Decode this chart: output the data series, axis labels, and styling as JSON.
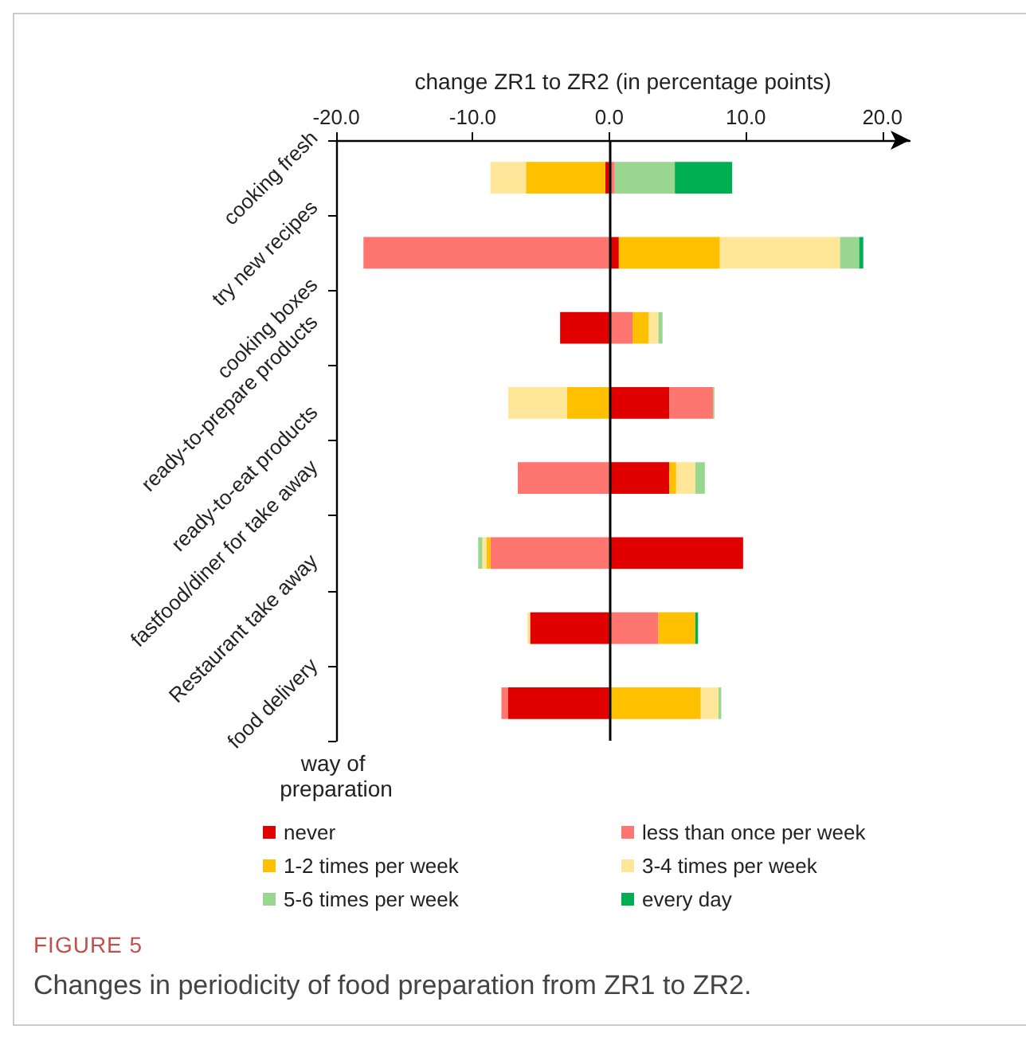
{
  "chart_data": {
    "type": "bar",
    "orientation": "horizontal",
    "stacked": true,
    "title": "FIGURE 5",
    "subtitle": "Changes in periodicity of food preparation from ZR1 to ZR2.",
    "xlabel": "change ZR1 to ZR2 (in percentage points)",
    "ylabel": "way of preparation",
    "categories": [
      "cooking fresh",
      "try new recipes",
      "cooking boxes",
      "ready-to-prepare products",
      "ready-to-eat products",
      "fastfood/diner for take away",
      "Restaurant take away",
      "food delivery"
    ],
    "series": [
      {
        "name": "never",
        "color": "#e00000",
        "values": [
          -0.3,
          0.7,
          -3.6,
          4.4,
          4.4,
          9.8,
          -5.8,
          -7.4
        ]
      },
      {
        "name": "less than once per week",
        "color": "#ff7570",
        "values": [
          0.4,
          -18.0,
          1.7,
          3.2,
          -6.7,
          -8.7,
          3.6,
          -0.5
        ]
      },
      {
        "name": "1-2 times per week",
        "color": "#ffc000",
        "values": [
          -5.8,
          7.4,
          1.2,
          -3.1,
          0.5,
          -0.3,
          2.7,
          6.7
        ]
      },
      {
        "name": "3-4 times per week",
        "color": "#ffe699",
        "values": [
          -2.6,
          8.8,
          0.7,
          -4.3,
          1.4,
          -0.3,
          -0.2,
          1.3
        ]
      },
      {
        "name": "5-6 times per week",
        "color": "#99d68f",
        "values": [
          4.4,
          1.4,
          0.3,
          0.1,
          0.7,
          -0.3,
          null,
          0.2
        ]
      },
      {
        "name": "every day",
        "color": "#00b050",
        "values": [
          4.2,
          0.3,
          null,
          null,
          null,
          null,
          0.2,
          null
        ]
      }
    ],
    "xlim": [
      -20,
      22
    ],
    "xticks": [
      {
        "value": -20,
        "label": "-20.0"
      },
      {
        "value": -10,
        "label": "-10.0"
      },
      {
        "value": 0,
        "label": "0.0"
      },
      {
        "value": 10,
        "label": "10.0"
      },
      {
        "value": 20,
        "label": "20.0"
      }
    ],
    "ref_lines": [
      {
        "axis": "x",
        "value": 0,
        "color": "#000000"
      }
    ],
    "grid": false,
    "legend": "bottom"
  }
}
